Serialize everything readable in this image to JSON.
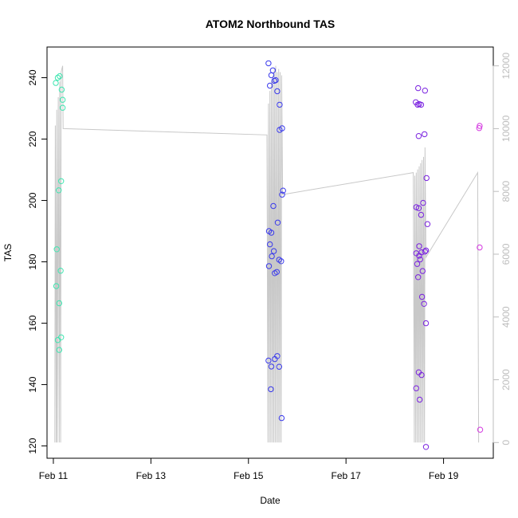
{
  "chart_data": {
    "type": "scatter",
    "title": "ATOM2 Northbound TAS",
    "xlabel": "Date",
    "ylabel": "TAS",
    "x_ticks": [
      {
        "value": 11,
        "label": "Feb 11"
      },
      {
        "value": 13,
        "label": "Feb 13"
      },
      {
        "value": 15,
        "label": "Feb 15"
      },
      {
        "value": 17,
        "label": "Feb 17"
      },
      {
        "value": 19,
        "label": "Feb 19"
      }
    ],
    "xlim": [
      10.87,
      20.02
    ],
    "ylim": [
      116.0,
      250.0
    ],
    "y_ticks": [
      120,
      140,
      160,
      180,
      200,
      220,
      240
    ],
    "y2lim": [
      -500,
      12600
    ],
    "y2_ticks": [
      0,
      2000,
      4000,
      6000,
      8000,
      10000,
      12000
    ],
    "grid": false,
    "series": [
      {
        "color": "#3ee6b0",
        "points": [
          {
            "x": 11.05,
            "y": 238.3
          },
          {
            "x": 11.09,
            "y": 240.0
          },
          {
            "x": 11.13,
            "y": 240.5
          },
          {
            "x": 11.17,
            "y": 236.1
          },
          {
            "x": 11.19,
            "y": 232.8
          },
          {
            "x": 11.19,
            "y": 230.2
          },
          {
            "x": 11.16,
            "y": 206.3
          },
          {
            "x": 11.11,
            "y": 203.3
          },
          {
            "x": 11.07,
            "y": 184.1
          },
          {
            "x": 11.15,
            "y": 177.1
          },
          {
            "x": 11.06,
            "y": 172.1
          },
          {
            "x": 11.12,
            "y": 166.5
          },
          {
            "x": 11.16,
            "y": 155.4
          },
          {
            "x": 11.09,
            "y": 154.5
          },
          {
            "x": 11.12,
            "y": 151.3
          }
        ]
      },
      {
        "color": "#3a3aec",
        "points": [
          {
            "x": 15.41,
            "y": 244.7
          },
          {
            "x": 15.5,
            "y": 242.4
          },
          {
            "x": 15.47,
            "y": 240.8
          },
          {
            "x": 15.56,
            "y": 239.2
          },
          {
            "x": 15.53,
            "y": 239.0
          },
          {
            "x": 15.44,
            "y": 237.4
          },
          {
            "x": 15.59,
            "y": 235.6
          },
          {
            "x": 15.64,
            "y": 231.2
          },
          {
            "x": 15.69,
            "y": 223.5
          },
          {
            "x": 15.64,
            "y": 223.0
          },
          {
            "x": 15.71,
            "y": 203.2
          },
          {
            "x": 15.69,
            "y": 201.9
          },
          {
            "x": 15.51,
            "y": 198.2
          },
          {
            "x": 15.6,
            "y": 192.8
          },
          {
            "x": 15.42,
            "y": 190.0
          },
          {
            "x": 15.47,
            "y": 189.5
          },
          {
            "x": 15.44,
            "y": 185.7
          },
          {
            "x": 15.52,
            "y": 183.5
          },
          {
            "x": 15.48,
            "y": 181.8
          },
          {
            "x": 15.63,
            "y": 180.7
          },
          {
            "x": 15.67,
            "y": 180.2
          },
          {
            "x": 15.42,
            "y": 178.6
          },
          {
            "x": 15.58,
            "y": 176.7
          },
          {
            "x": 15.54,
            "y": 176.3
          },
          {
            "x": 15.59,
            "y": 149.3
          },
          {
            "x": 15.54,
            "y": 148.3
          },
          {
            "x": 15.41,
            "y": 147.8
          },
          {
            "x": 15.47,
            "y": 145.9
          },
          {
            "x": 15.63,
            "y": 145.8
          },
          {
            "x": 15.46,
            "y": 138.5
          },
          {
            "x": 15.68,
            "y": 129.1
          }
        ]
      },
      {
        "color": "#7a22e0",
        "points": [
          {
            "x": 18.48,
            "y": 236.6
          },
          {
            "x": 18.62,
            "y": 235.8
          },
          {
            "x": 18.43,
            "y": 232.0
          },
          {
            "x": 18.47,
            "y": 231.2
          },
          {
            "x": 18.5,
            "y": 231.4
          },
          {
            "x": 18.54,
            "y": 231.2
          },
          {
            "x": 18.49,
            "y": 221.0
          },
          {
            "x": 18.61,
            "y": 221.6
          },
          {
            "x": 18.65,
            "y": 207.3
          },
          {
            "x": 18.58,
            "y": 199.2
          },
          {
            "x": 18.44,
            "y": 197.8
          },
          {
            "x": 18.49,
            "y": 197.5
          },
          {
            "x": 18.54,
            "y": 195.3
          },
          {
            "x": 18.67,
            "y": 192.3
          },
          {
            "x": 18.5,
            "y": 185.1
          },
          {
            "x": 18.64,
            "y": 183.7
          },
          {
            "x": 18.62,
            "y": 183.3
          },
          {
            "x": 18.55,
            "y": 183.1
          },
          {
            "x": 18.44,
            "y": 182.8
          },
          {
            "x": 18.5,
            "y": 182.0
          },
          {
            "x": 18.52,
            "y": 180.8
          },
          {
            "x": 18.46,
            "y": 179.3
          },
          {
            "x": 18.57,
            "y": 177.0
          },
          {
            "x": 18.48,
            "y": 175.0
          },
          {
            "x": 18.56,
            "y": 168.6
          },
          {
            "x": 18.6,
            "y": 166.3
          },
          {
            "x": 18.64,
            "y": 160.0
          },
          {
            "x": 18.49,
            "y": 144.0
          },
          {
            "x": 18.55,
            "y": 143.1
          },
          {
            "x": 18.44,
            "y": 138.8
          },
          {
            "x": 18.51,
            "y": 135.1
          },
          {
            "x": 18.64,
            "y": 119.7
          }
        ]
      },
      {
        "color": "#d438e0",
        "points": [
          {
            "x": 19.74,
            "y": 224.3
          },
          {
            "x": 19.73,
            "y": 223.6
          },
          {
            "x": 19.74,
            "y": 184.7
          },
          {
            "x": 19.75,
            "y": 125.3
          }
        ]
      }
    ],
    "altitude_line": {
      "color": "#c8c8c8",
      "points": [
        {
          "x": 11.03,
          "y": 0
        },
        {
          "x": 11.04,
          "y": 10100
        },
        {
          "x": 11.06,
          "y": 0
        },
        {
          "x": 11.07,
          "y": 10600
        },
        {
          "x": 11.08,
          "y": 0
        },
        {
          "x": 11.1,
          "y": 11000
        },
        {
          "x": 11.12,
          "y": 0
        },
        {
          "x": 11.13,
          "y": 11500
        },
        {
          "x": 11.15,
          "y": 0
        },
        {
          "x": 11.16,
          "y": 11800
        },
        {
          "x": 11.19,
          "y": 12000
        },
        {
          "x": 11.2,
          "y": 10000
        },
        {
          "x": 15.38,
          "y": 9800
        },
        {
          "x": 15.4,
          "y": 0
        },
        {
          "x": 15.41,
          "y": 10800
        },
        {
          "x": 15.43,
          "y": 0
        },
        {
          "x": 15.44,
          "y": 11200
        },
        {
          "x": 15.46,
          "y": 0
        },
        {
          "x": 15.47,
          "y": 11500
        },
        {
          "x": 15.49,
          "y": 0
        },
        {
          "x": 15.5,
          "y": 11700
        },
        {
          "x": 15.52,
          "y": 0
        },
        {
          "x": 15.53,
          "y": 11900
        },
        {
          "x": 15.55,
          "y": 0
        },
        {
          "x": 15.56,
          "y": 12000
        },
        {
          "x": 15.58,
          "y": 0
        },
        {
          "x": 15.59,
          "y": 11800
        },
        {
          "x": 15.61,
          "y": 0
        },
        {
          "x": 15.62,
          "y": 11900
        },
        {
          "x": 15.64,
          "y": 0
        },
        {
          "x": 15.65,
          "y": 11800
        },
        {
          "x": 15.67,
          "y": 0
        },
        {
          "x": 15.68,
          "y": 11700
        },
        {
          "x": 15.7,
          "y": 7900
        },
        {
          "x": 18.38,
          "y": 8600
        },
        {
          "x": 18.4,
          "y": 0
        },
        {
          "x": 18.41,
          "y": 8500
        },
        {
          "x": 18.43,
          "y": 0
        },
        {
          "x": 18.44,
          "y": 8600
        },
        {
          "x": 18.46,
          "y": 0
        },
        {
          "x": 18.47,
          "y": 8700
        },
        {
          "x": 18.49,
          "y": 0
        },
        {
          "x": 18.5,
          "y": 8800
        },
        {
          "x": 18.52,
          "y": 0
        },
        {
          "x": 18.53,
          "y": 8900
        },
        {
          "x": 18.55,
          "y": 0
        },
        {
          "x": 18.56,
          "y": 9000
        },
        {
          "x": 18.58,
          "y": 0
        },
        {
          "x": 18.59,
          "y": 9100
        },
        {
          "x": 18.61,
          "y": 0
        },
        {
          "x": 18.62,
          "y": 9400
        },
        {
          "x": 18.64,
          "y": 5900
        },
        {
          "x": 19.7,
          "y": 8600
        },
        {
          "x": 19.72,
          "y": 0
        }
      ]
    }
  }
}
